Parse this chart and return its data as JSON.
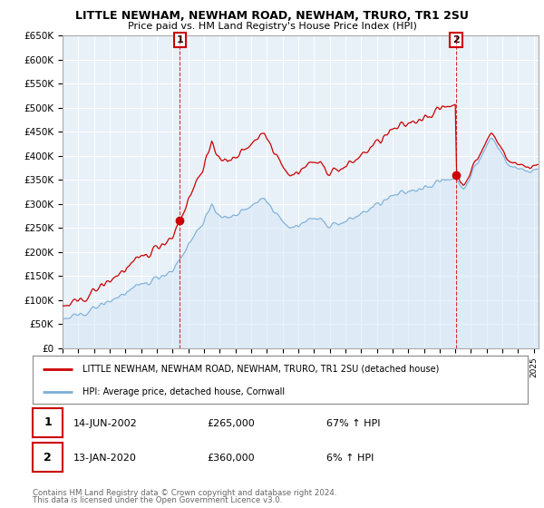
{
  "title": "LITTLE NEWHAM, NEWHAM ROAD, NEWHAM, TRURO, TR1 2SU",
  "subtitle": "Price paid vs. HM Land Registry's House Price Index (HPI)",
  "ylabel_ticks": [
    "£0",
    "£50K",
    "£100K",
    "£150K",
    "£200K",
    "£250K",
    "£300K",
    "£350K",
    "£400K",
    "£450K",
    "£500K",
    "£550K",
    "£600K",
    "£650K"
  ],
  "ylim": [
    0,
    650000
  ],
  "ytick_vals": [
    0,
    50000,
    100000,
    150000,
    200000,
    250000,
    300000,
    350000,
    400000,
    450000,
    500000,
    550000,
    600000,
    650000
  ],
  "legend_line1": "LITTLE NEWHAM, NEWHAM ROAD, NEWHAM, TRURO, TR1 2SU (detached house)",
  "legend_line2": "HPI: Average price, detached house, Cornwall",
  "annotation1_label": "1",
  "annotation1_date": "14-JUN-2002",
  "annotation1_price": "£265,000",
  "annotation1_hpi": "67% ↑ HPI",
  "annotation2_label": "2",
  "annotation2_date": "13-JAN-2020",
  "annotation2_price": "£360,000",
  "annotation2_hpi": "6% ↑ HPI",
  "footer1": "Contains HM Land Registry data © Crown copyright and database right 2024.",
  "footer2": "This data is licensed under the Open Government Licence v3.0.",
  "red_color": "#cc0000",
  "blue_color": "#7aaed6",
  "blue_fill": "#d6e8f7",
  "background_color": "#ffffff",
  "grid_color": "#ccddee",
  "annotation_box_color": "#cc0000",
  "sale1_year": 2002.46,
  "sale1_price": 265000,
  "sale2_year": 2020.04,
  "sale2_price": 360000
}
